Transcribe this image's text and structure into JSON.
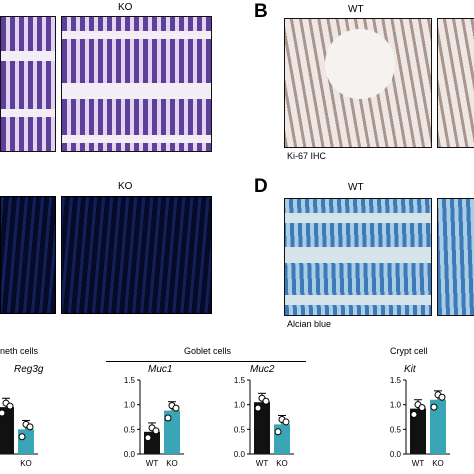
{
  "panel_letters": {
    "b": "B",
    "d": "D"
  },
  "top": {
    "ko_label": "KO",
    "wt_label_b": "WT",
    "ki67_caption": "Ki-67 IHC"
  },
  "middle": {
    "ko_label": "KO",
    "wt_label_d": "WT",
    "alcian_caption": "Alcian blue"
  },
  "groups": {
    "paneth": "neth cells",
    "goblet": "Goblet cells",
    "crypt": "Crypt cell"
  },
  "colors": {
    "wt_bar": "#111111",
    "ko_bar": "#3aa6b5"
  },
  "chart_data": [
    {
      "type": "bar",
      "title": "Reg3g",
      "categories": [
        "",
        "KO"
      ],
      "series": [
        {
          "values": [
            0.95,
            0.5
          ]
        }
      ],
      "ylim": [
        0,
        1.5
      ],
      "yticks": []
    },
    {
      "type": "bar",
      "title": "Muc1",
      "categories": [
        "WT",
        "KO"
      ],
      "series": [
        {
          "values": [
            0.45,
            0.88
          ]
        }
      ],
      "ylim": [
        0,
        1.5
      ],
      "yticks": [
        "0.0",
        "0.5",
        "1.0",
        "1.5"
      ]
    },
    {
      "type": "bar",
      "title": "Muc2",
      "categories": [
        "WT",
        "KO"
      ],
      "series": [
        {
          "values": [
            1.05,
            0.6
          ]
        }
      ],
      "ylim": [
        0,
        1.5
      ],
      "yticks": [
        "0.0",
        "0.5",
        "1.0",
        "1.5"
      ]
    },
    {
      "type": "bar",
      "title": "Kit",
      "categories": [
        "WT",
        "KO"
      ],
      "series": [
        {
          "values": [
            0.92,
            1.1
          ]
        }
      ],
      "ylim": [
        0,
        1.5
      ],
      "yticks": [
        "0.0",
        "0.5",
        "1.0",
        "1.5"
      ]
    }
  ]
}
